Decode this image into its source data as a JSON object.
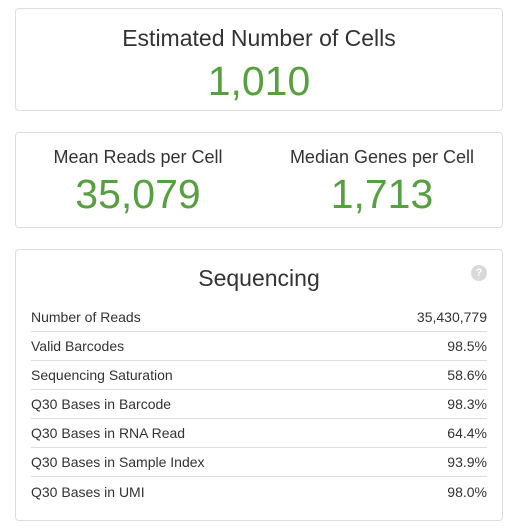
{
  "cells_card": {
    "title": "Estimated Number of Cells",
    "value": "1,010"
  },
  "reads_card": {
    "left": {
      "title": "Mean Reads per Cell",
      "value": "35,079"
    },
    "right": {
      "title": "Median Genes per Cell",
      "value": "1,713"
    }
  },
  "sequencing": {
    "title": "Sequencing",
    "help_icon": "?",
    "rows": [
      {
        "label": "Number of Reads",
        "value": "35,430,779"
      },
      {
        "label": "Valid Barcodes",
        "value": "98.5%"
      },
      {
        "label": "Sequencing Saturation",
        "value": "58.6%"
      },
      {
        "label": "Q30 Bases in Barcode",
        "value": "98.3%"
      },
      {
        "label": "Q30 Bases in RNA Read",
        "value": "64.4%"
      },
      {
        "label": "Q30 Bases in Sample Index",
        "value": "93.9%"
      },
      {
        "label": "Q30 Bases in UMI",
        "value": "98.0%"
      }
    ]
  },
  "colors": {
    "metric_value": "#56a03f",
    "border": "#dddddd",
    "text": "#333333"
  }
}
